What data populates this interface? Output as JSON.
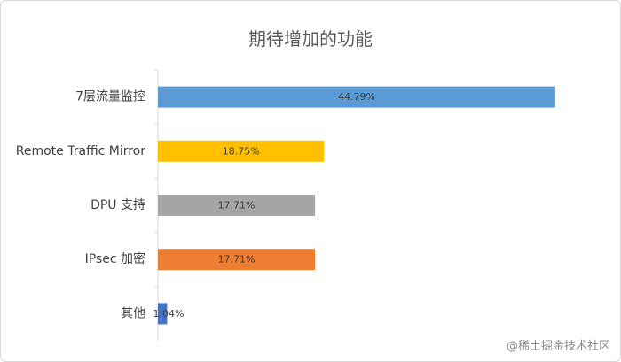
{
  "chart_data": {
    "type": "bar",
    "orientation": "horizontal",
    "title": "期待增加的功能",
    "categories": [
      "7层流量监控",
      "Remote Traffic Mirror",
      "DPU 支持",
      "IPsec 加密",
      "其他"
    ],
    "values": [
      44.79,
      18.75,
      17.71,
      17.71,
      1.04
    ],
    "value_labels": [
      "44.79%",
      "18.75%",
      "17.71%",
      "17.71%",
      "1.04%"
    ],
    "colors": [
      "#5b9bd5",
      "#ffc000",
      "#a5a5a5",
      "#ed7d31",
      "#4472c4"
    ],
    "xlim": [
      0,
      45
    ],
    "grid": false,
    "legend": "none"
  },
  "watermark": "@稀土掘金技术社区"
}
